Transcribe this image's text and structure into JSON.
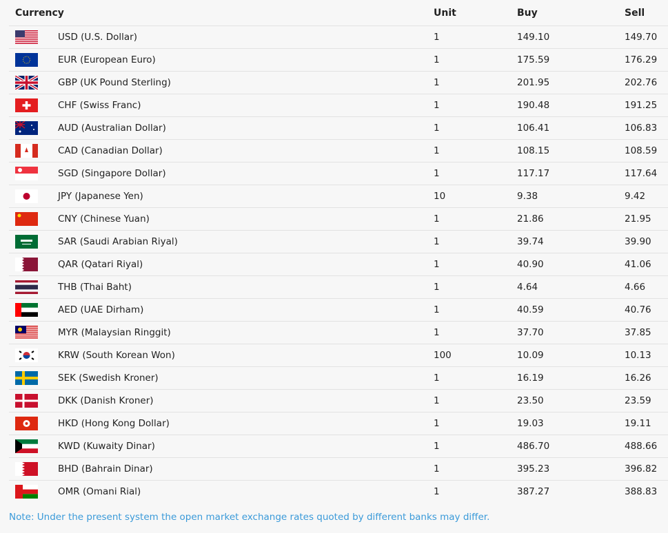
{
  "table": {
    "headers": {
      "currency": "Currency",
      "unit": "Unit",
      "buy": "Buy",
      "sell": "Sell"
    },
    "rows": [
      {
        "flag": "us",
        "currency": "USD (U.S. Dollar)",
        "unit": "1",
        "buy": "149.10",
        "sell": "149.70"
      },
      {
        "flag": "eu",
        "currency": "EUR (European Euro)",
        "unit": "1",
        "buy": "175.59",
        "sell": "176.29"
      },
      {
        "flag": "gb",
        "currency": "GBP (UK Pound Sterling)",
        "unit": "1",
        "buy": "201.95",
        "sell": "202.76"
      },
      {
        "flag": "ch",
        "currency": "CHF (Swiss Franc)",
        "unit": "1",
        "buy": "190.48",
        "sell": "191.25"
      },
      {
        "flag": "au",
        "currency": "AUD (Australian Dollar)",
        "unit": "1",
        "buy": "106.41",
        "sell": "106.83"
      },
      {
        "flag": "ca",
        "currency": "CAD (Canadian Dollar)",
        "unit": "1",
        "buy": "108.15",
        "sell": "108.59"
      },
      {
        "flag": "sg",
        "currency": "SGD (Singapore Dollar)",
        "unit": "1",
        "buy": "117.17",
        "sell": "117.64"
      },
      {
        "flag": "jp",
        "currency": "JPY (Japanese Yen)",
        "unit": "10",
        "buy": "9.38",
        "sell": "9.42"
      },
      {
        "flag": "cn",
        "currency": "CNY (Chinese Yuan)",
        "unit": "1",
        "buy": "21.86",
        "sell": "21.95"
      },
      {
        "flag": "sa",
        "currency": "SAR (Saudi Arabian Riyal)",
        "unit": "1",
        "buy": "39.74",
        "sell": "39.90"
      },
      {
        "flag": "qa",
        "currency": "QAR (Qatari Riyal)",
        "unit": "1",
        "buy": "40.90",
        "sell": "41.06"
      },
      {
        "flag": "th",
        "currency": "THB (Thai Baht)",
        "unit": "1",
        "buy": "4.64",
        "sell": "4.66"
      },
      {
        "flag": "ae",
        "currency": "AED (UAE Dirham)",
        "unit": "1",
        "buy": "40.59",
        "sell": "40.76"
      },
      {
        "flag": "my",
        "currency": "MYR (Malaysian Ringgit)",
        "unit": "1",
        "buy": "37.70",
        "sell": "37.85"
      },
      {
        "flag": "kr",
        "currency": "KRW (South Korean Won)",
        "unit": "100",
        "buy": "10.09",
        "sell": "10.13"
      },
      {
        "flag": "se",
        "currency": "SEK (Swedish Kroner)",
        "unit": "1",
        "buy": "16.19",
        "sell": "16.26"
      },
      {
        "flag": "dk",
        "currency": "DKK (Danish Kroner)",
        "unit": "1",
        "buy": "23.50",
        "sell": "23.59"
      },
      {
        "flag": "hk",
        "currency": "HKD (Hong Kong Dollar)",
        "unit": "1",
        "buy": "19.03",
        "sell": "19.11"
      },
      {
        "flag": "kw",
        "currency": "KWD (Kuwaity Dinar)",
        "unit": "1",
        "buy": "486.70",
        "sell": "488.66"
      },
      {
        "flag": "bh",
        "currency": "BHD (Bahrain Dinar)",
        "unit": "1",
        "buy": "395.23",
        "sell": "396.82"
      },
      {
        "flag": "om",
        "currency": "OMR (Omani Rial)",
        "unit": "1",
        "buy": "387.27",
        "sell": "388.83"
      }
    ]
  },
  "note": "Note: Under the present system the open market exchange rates quoted by different banks may differ."
}
